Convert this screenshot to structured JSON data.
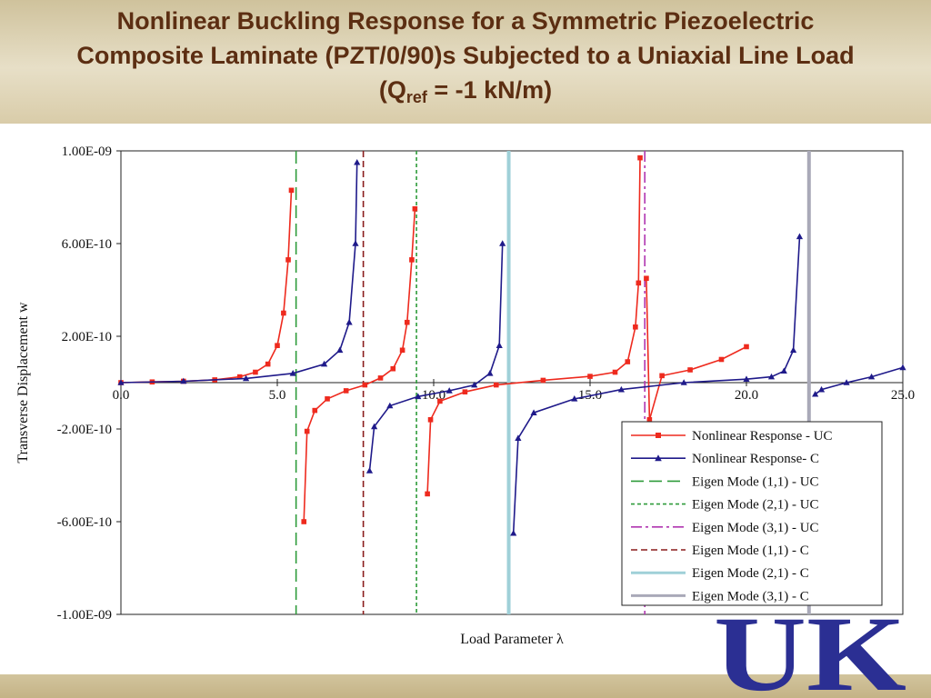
{
  "slide": {
    "title_line1": "Nonlinear Buckling Response for a Symmetric Piezoelectric",
    "title_line2": "Composite Laminate (PZT/0/90)s Subjected to a Uniaxial Line Load",
    "title_line3_prefix": "(Q",
    "title_line3_sub": "ref",
    "title_line3_suffix": " = -1 kN/m)"
  },
  "logo": {
    "text": "UK",
    "color": "#2b2f93"
  },
  "chart_data": {
    "type": "line",
    "xlabel": "Load Parameter λ",
    "ylabel": "Transverse Displacement w",
    "xlim": [
      0,
      25
    ],
    "ylim": [
      -1e-09,
      1e-09
    ],
    "x_ticks": [
      0,
      5,
      10,
      15,
      20,
      25
    ],
    "x_tick_labels": [
      "0.0",
      "5.0",
      "10.0",
      "15.0",
      "20.0",
      "25.0"
    ],
    "y_ticks": [
      1e-09,
      6e-10,
      2e-10,
      -2e-10,
      -6e-10,
      -1e-09
    ],
    "y_tick_labels": [
      "1.00E-09",
      "6.00E-10",
      "2.00E-10",
      "-2.00E-10",
      "-6.00E-10",
      "-1.00E-09"
    ],
    "legend_position": "bottom-right",
    "series": [
      {
        "name": "Nonlinear Response - UC",
        "color": "#ee2a1e",
        "marker": "square",
        "style": "solid",
        "segments": [
          [
            [
              0,
              0
            ],
            [
              1,
              3e-12
            ],
            [
              2,
              6e-12
            ],
            [
              3,
              1.2e-11
            ],
            [
              3.8,
              2.5e-11
            ],
            [
              4.3,
              4.5e-11
            ],
            [
              4.7,
              8e-11
            ],
            [
              5.0,
              1.6e-10
            ],
            [
              5.2,
              3e-10
            ],
            [
              5.35,
              5.3e-10
            ],
            [
              5.45,
              8.3e-10
            ]
          ],
          [
            [
              5.85,
              -6e-10
            ],
            [
              5.95,
              -2.1e-10
            ],
            [
              6.2,
              -1.2e-10
            ],
            [
              6.6,
              -7e-11
            ],
            [
              7.2,
              -3.5e-11
            ],
            [
              7.8,
              -1e-11
            ],
            [
              8.3,
              2e-11
            ],
            [
              8.7,
              6e-11
            ],
            [
              9.0,
              1.4e-10
            ],
            [
              9.15,
              2.6e-10
            ],
            [
              9.3,
              5.3e-10
            ],
            [
              9.4,
              7.5e-10
            ]
          ],
          [
            [
              9.8,
              -4.8e-10
            ],
            [
              9.9,
              -1.6e-10
            ],
            [
              10.2,
              -8e-11
            ],
            [
              11,
              -4e-11
            ],
            [
              12,
              -1e-11
            ],
            [
              13.5,
              1e-11
            ],
            [
              15,
              2.7e-11
            ],
            [
              15.8,
              4.5e-11
            ],
            [
              16.2,
              9e-11
            ],
            [
              16.45,
              2.4e-10
            ],
            [
              16.55,
              4.3e-10
            ],
            [
              16.6,
              9.7e-10
            ]
          ],
          [
            [
              16.8,
              4.5e-10
            ],
            [
              16.9,
              -1.6e-10
            ],
            [
              17.3,
              3e-11
            ],
            [
              18.2,
              5.5e-11
            ],
            [
              19.2,
              1e-10
            ],
            [
              20.0,
              1.55e-10
            ]
          ]
        ]
      },
      {
        "name": "Nonlinear Response- C",
        "color": "#1f1a8a",
        "marker": "triangle",
        "style": "solid",
        "segments": [
          [
            [
              0,
              0
            ],
            [
              2,
              6e-12
            ],
            [
              4,
              1.8e-11
            ],
            [
              5.5,
              4e-11
            ],
            [
              6.5,
              8e-11
            ],
            [
              7.0,
              1.4e-10
            ],
            [
              7.3,
              2.6e-10
            ],
            [
              7.5,
              6e-10
            ],
            [
              7.55,
              9.5e-10
            ]
          ],
          [
            [
              7.95,
              -3.8e-10
            ],
            [
              8.1,
              -1.9e-10
            ],
            [
              8.6,
              -1e-10
            ],
            [
              9.5,
              -6e-11
            ],
            [
              10.5,
              -3.5e-11
            ],
            [
              11.3,
              -1e-11
            ],
            [
              11.8,
              4e-11
            ],
            [
              12.1,
              1.6e-10
            ],
            [
              12.2,
              6e-10
            ]
          ],
          [
            [
              12.55,
              -6.5e-10
            ],
            [
              12.7,
              -2.4e-10
            ],
            [
              13.2,
              -1.3e-10
            ],
            [
              14.5,
              -7e-11
            ],
            [
              16,
              -3e-11
            ],
            [
              18,
              0
            ],
            [
              20,
              1.5e-11
            ],
            [
              20.8,
              2.5e-11
            ],
            [
              21.2,
              5e-11
            ],
            [
              21.5,
              1.4e-10
            ],
            [
              21.7,
              6.3e-10
            ]
          ],
          [
            [
              22.2,
              -5e-11
            ],
            [
              22.4,
              -3e-11
            ],
            [
              23.2,
              0
            ],
            [
              24,
              2.5e-11
            ],
            [
              25,
              6.5e-11
            ]
          ]
        ]
      }
    ],
    "eigen_modes": [
      {
        "name": "Eigen Mode (1,1) - UC",
        "lambda": 5.6,
        "color": "#2e9b3a",
        "style": "longdash"
      },
      {
        "name": "Eigen Mode (2,1) - UC",
        "lambda": 9.45,
        "color": "#2e9b3a",
        "style": "shortdash"
      },
      {
        "name": "Eigen Mode (3,1) - UC",
        "lambda": 16.75,
        "color": "#b036b0",
        "style": "dashdot"
      },
      {
        "name": "Eigen Mode (1,1) - C",
        "lambda": 7.75,
        "color": "#8a1c1c",
        "style": "dash"
      },
      {
        "name": "Eigen Mode (2,1) - C",
        "lambda": 12.4,
        "color": "#9fd0d8",
        "style": "solid"
      },
      {
        "name": "Eigen Mode (3,1) - C",
        "lambda": 22.0,
        "color": "#a9a9b8",
        "style": "solid"
      }
    ]
  }
}
